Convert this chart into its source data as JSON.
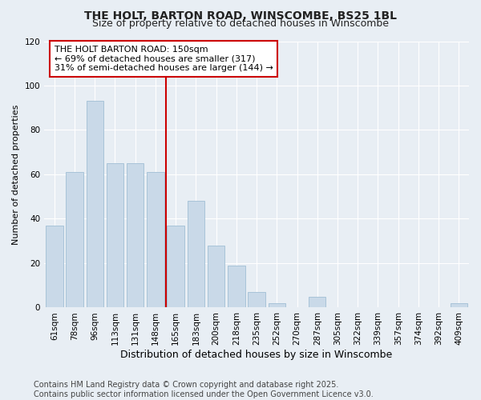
{
  "title": "THE HOLT, BARTON ROAD, WINSCOMBE, BS25 1BL",
  "subtitle": "Size of property relative to detached houses in Winscombe",
  "xlabel": "Distribution of detached houses by size in Winscombe",
  "ylabel": "Number of detached properties",
  "categories": [
    "61sqm",
    "78sqm",
    "96sqm",
    "113sqm",
    "131sqm",
    "148sqm",
    "165sqm",
    "183sqm",
    "200sqm",
    "218sqm",
    "235sqm",
    "252sqm",
    "270sqm",
    "287sqm",
    "305sqm",
    "322sqm",
    "339sqm",
    "357sqm",
    "374sqm",
    "392sqm",
    "409sqm"
  ],
  "values": [
    37,
    61,
    93,
    65,
    65,
    61,
    37,
    48,
    28,
    19,
    7,
    2,
    0,
    5,
    0,
    0,
    0,
    0,
    0,
    0,
    2
  ],
  "bar_color": "#c9d9e8",
  "bar_edge_color": "#a8c4d8",
  "vline_x_idx": 5,
  "vline_color": "#cc0000",
  "annotation_line1": "THE HOLT BARTON ROAD: 150sqm",
  "annotation_line2": "← 69% of detached houses are smaller (317)",
  "annotation_line3": "31% of semi-detached houses are larger (144) →",
  "annotation_box_color": "#ffffff",
  "annotation_box_edge": "#cc0000",
  "ylim": [
    0,
    120
  ],
  "yticks": [
    0,
    20,
    40,
    60,
    80,
    100,
    120
  ],
  "footer": "Contains HM Land Registry data © Crown copyright and database right 2025.\nContains public sector information licensed under the Open Government Licence v3.0.",
  "bg_color": "#e8eef4",
  "plot_bg_color": "#e8eef4",
  "grid_color": "#ffffff",
  "title_fontsize": 10,
  "subtitle_fontsize": 9,
  "footer_fontsize": 7,
  "ylabel_fontsize": 8,
  "xlabel_fontsize": 9,
  "tick_fontsize": 7.5,
  "annotation_fontsize": 8
}
